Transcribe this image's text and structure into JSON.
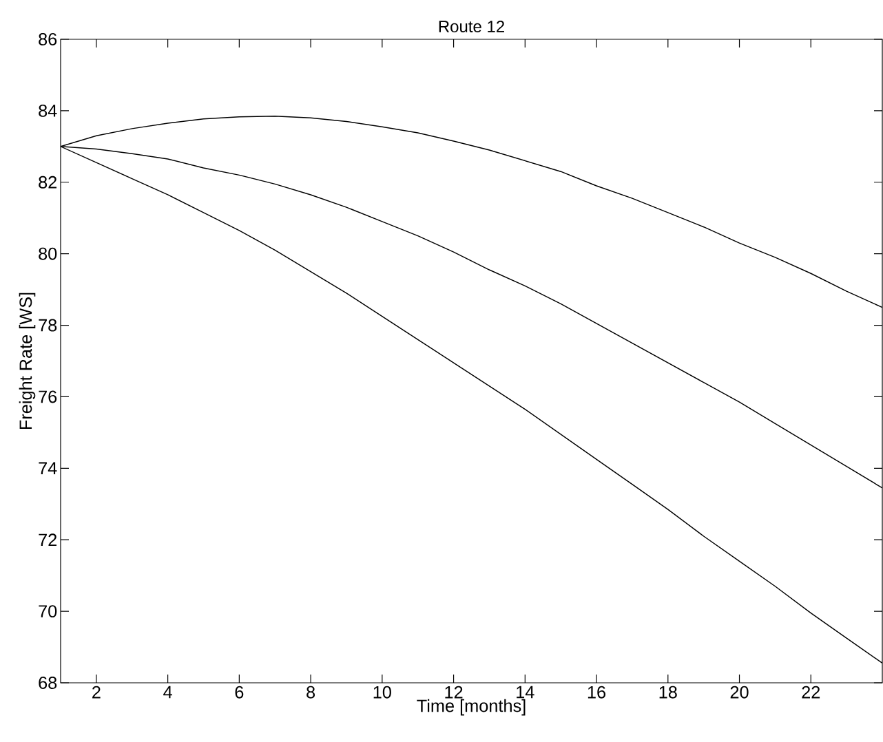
{
  "chart_data": {
    "type": "line",
    "title": "Route 12",
    "xlabel": "Time [months]",
    "ylabel": "Freight Rate [WS]",
    "x": [
      1,
      2,
      3,
      4,
      5,
      6,
      7,
      8,
      9,
      10,
      11,
      12,
      13,
      14,
      15,
      16,
      17,
      18,
      19,
      20,
      21,
      22,
      23,
      24
    ],
    "series": [
      {
        "color": "#000000",
        "values": [
          83,
          83.3,
          83.5,
          83.65,
          83.77,
          83.83,
          83.85,
          83.8,
          83.7,
          83.55,
          83.38,
          83.15,
          82.9,
          82.6,
          82.3,
          81.9,
          81.55,
          81.15,
          80.75,
          80.3,
          79.9,
          79.45,
          78.95,
          78.5
        ]
      },
      {
        "color": "#000000",
        "values": [
          83,
          82.93,
          82.8,
          82.65,
          82.4,
          82.2,
          81.95,
          81.65,
          81.3,
          80.9,
          80.5,
          80.05,
          79.55,
          79.1,
          78.6,
          78.05,
          77.5,
          76.95,
          76.4,
          75.85,
          75.25,
          74.65,
          74.05,
          73.45
        ]
      },
      {
        "color": "#000000",
        "values": [
          83,
          82.55,
          82.1,
          81.65,
          81.15,
          80.65,
          80.1,
          79.5,
          78.9,
          78.25,
          77.6,
          76.95,
          76.3,
          75.65,
          74.95,
          74.25,
          73.55,
          72.85,
          72.1,
          71.4,
          70.7,
          69.95,
          69.25,
          68.55
        ]
      }
    ],
    "xlim": [
      1,
      24
    ],
    "ylim": [
      68,
      86
    ],
    "xticks": [
      2,
      4,
      6,
      8,
      10,
      12,
      14,
      16,
      18,
      20,
      22
    ],
    "yticks": [
      68,
      70,
      72,
      74,
      76,
      78,
      80,
      82,
      84,
      86
    ],
    "grid": false,
    "marker": "none",
    "line_style": "solid"
  }
}
